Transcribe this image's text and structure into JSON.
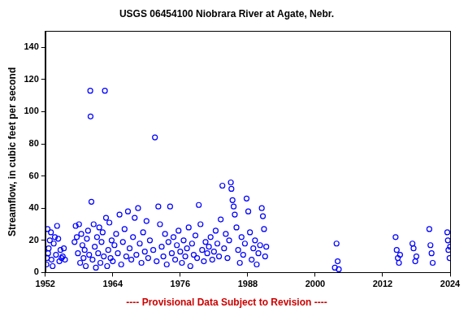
{
  "chart_data": {
    "type": "scatter",
    "title": "USGS 06454100 Niobrara River at Agate, Nebr.",
    "y_label": "Streamflow, in cubic feet per second",
    "annotation": "---- Provisional Data Subject to Revision ----",
    "x": [
      1952.2,
      1952.3,
      1952.4,
      1952.5,
      1952.6,
      1952.8,
      1953.0,
      1953.1,
      1953.3,
      1953.5,
      1953.7,
      1953.9,
      1954.1,
      1954.3,
      1954.5,
      1954.7,
      1954.9,
      1955.1,
      1955.3,
      1955.5,
      1957.2,
      1957.4,
      1957.6,
      1957.8,
      1958.0,
      1958.2,
      1958.4,
      1958.6,
      1958.8,
      1959.0,
      1959.2,
      1959.4,
      1959.6,
      1959.8,
      1960.0,
      1960.05,
      1960.2,
      1960.4,
      1960.6,
      1960.8,
      1961.0,
      1961.2,
      1961.4,
      1961.6,
      1961.8,
      1962.0,
      1962.2,
      1962.4,
      1962.6,
      1962.8,
      1963.0,
      1963.2,
      1963.4,
      1963.6,
      1963.8,
      1964.0,
      1964.3,
      1964.6,
      1964.9,
      1965.2,
      1965.5,
      1965.8,
      1966.1,
      1966.4,
      1966.7,
      1967.0,
      1967.3,
      1967.6,
      1967.9,
      1968.2,
      1968.5,
      1968.8,
      1969.1,
      1969.4,
      1969.7,
      1970.0,
      1970.3,
      1970.6,
      1971.2,
      1971.5,
      1971.8,
      1972.1,
      1972.4,
      1972.7,
      1973.0,
      1973.3,
      1973.6,
      1973.9,
      1974.2,
      1974.5,
      1974.8,
      1975.1,
      1975.4,
      1975.7,
      1976.0,
      1976.3,
      1976.6,
      1976.9,
      1977.2,
      1977.5,
      1977.8,
      1978.1,
      1978.4,
      1978.7,
      1979.0,
      1979.3,
      1979.6,
      1979.9,
      1980.2,
      1980.5,
      1980.8,
      1981.1,
      1981.4,
      1981.7,
      1982.0,
      1982.3,
      1982.6,
      1982.9,
      1983.2,
      1983.5,
      1983.8,
      1984.1,
      1984.4,
      1984.7,
      1985.0,
      1985.1,
      1985.3,
      1985.5,
      1985.7,
      1986.0,
      1986.3,
      1986.6,
      1986.9,
      1987.2,
      1987.5,
      1987.8,
      1988.1,
      1988.4,
      1988.7,
      1989.0,
      1989.3,
      1989.6,
      1989.9,
      1990.2,
      1990.5,
      1990.7,
      1990.9,
      1991.1,
      1991.3,
      2003.5,
      2003.8,
      2004.0,
      2004.2,
      2014.3,
      2014.5,
      2014.7,
      2014.9,
      2015.1,
      2017.3,
      2017.5,
      2017.8,
      2018.0,
      2020.3,
      2020.5,
      2020.7,
      2020.9,
      2023.5,
      2023.6,
      2023.7,
      2023.9,
      2024.0
    ],
    "values": [
      5,
      9,
      27,
      12,
      15,
      20,
      25,
      8,
      4,
      18,
      22,
      11,
      29,
      21,
      7,
      14,
      9,
      10,
      15,
      8,
      19,
      29,
      22,
      12,
      30,
      6,
      24,
      17,
      9,
      14,
      4,
      21,
      26,
      11,
      113,
      97,
      44,
      8,
      30,
      16,
      3,
      22,
      12,
      28,
      6,
      19,
      25,
      10,
      113,
      34,
      4,
      14,
      31,
      9,
      20,
      7,
      17,
      24,
      12,
      36,
      5,
      19,
      27,
      10,
      38,
      15,
      8,
      22,
      34,
      11,
      40,
      18,
      6,
      25,
      13,
      32,
      9,
      20,
      14,
      84,
      7,
      41,
      30,
      16,
      10,
      24,
      5,
      19,
      41,
      12,
      22,
      8,
      17,
      26,
      13,
      6,
      20,
      10,
      15,
      28,
      4,
      18,
      11,
      23,
      9,
      42,
      30,
      14,
      7,
      19,
      12,
      16,
      22,
      8,
      13,
      26,
      18,
      10,
      33,
      54,
      15,
      24,
      9,
      20,
      56,
      52,
      45,
      41,
      36,
      28,
      14,
      6,
      22,
      11,
      18,
      46,
      38,
      25,
      8,
      15,
      20,
      5,
      12,
      17,
      40,
      35,
      27,
      10,
      16,
      3,
      18,
      7,
      2,
      22,
      14,
      9,
      6,
      11,
      18,
      15,
      7,
      10,
      27,
      17,
      12,
      6,
      25,
      20,
      14,
      9,
      16
    ],
    "color": "#0000ff",
    "marker": "circle",
    "xlim": [
      1952,
      2024
    ],
    "xticks": [
      1952,
      1964,
      1976,
      1988,
      2000,
      2012,
      2024
    ],
    "ylim": [
      0,
      150
    ],
    "yticks": [
      0,
      20,
      40,
      60,
      80,
      100,
      120,
      140
    ],
    "grid": false
  }
}
